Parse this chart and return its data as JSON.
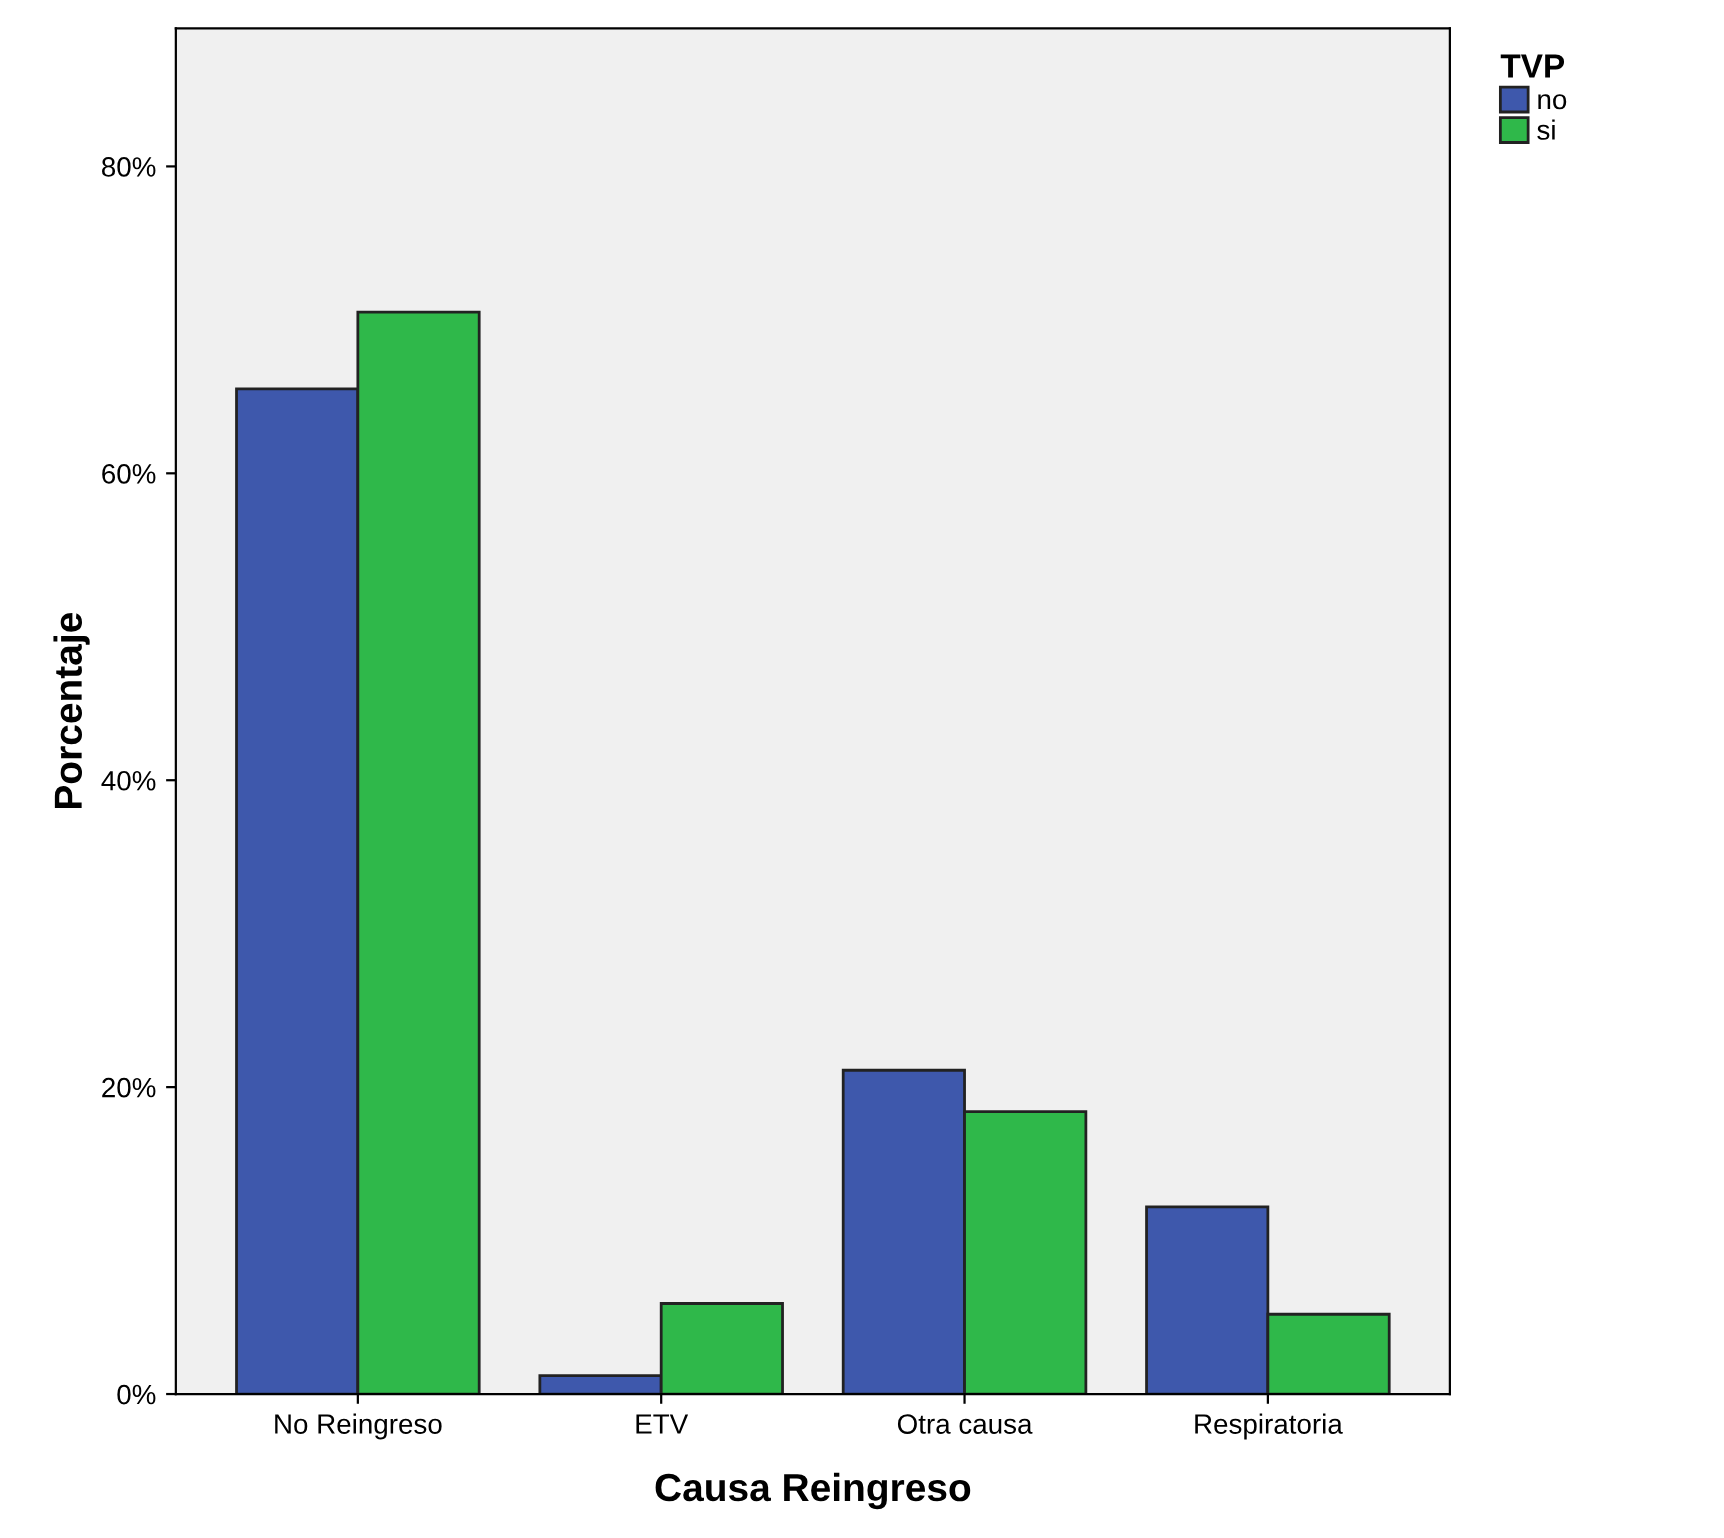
{
  "chart_data": {
    "type": "bar",
    "xlabel": "Causa Reingreso",
    "ylabel": "Porcentaje",
    "legend_title": "TVP",
    "legend": "top right",
    "categories": [
      "No Reingreso",
      "ETV",
      "Otra causa",
      "Respiratoria"
    ],
    "series": [
      {
        "name": "no",
        "color": "#3e58ac",
        "values": [
          65.5,
          1.2,
          21.1,
          12.2
        ]
      },
      {
        "name": "si",
        "color": "#2fb84a",
        "values": [
          70.5,
          5.9,
          18.4,
          5.2
        ]
      }
    ],
    "ylim": [
      0,
      89
    ],
    "yticks": [
      {
        "value": 0,
        "label": "0%"
      },
      {
        "value": 20,
        "label": "20%"
      },
      {
        "value": 40,
        "label": "40%"
      },
      {
        "value": 60,
        "label": "60%"
      },
      {
        "value": 80,
        "label": "80%"
      }
    ],
    "grid": false
  }
}
